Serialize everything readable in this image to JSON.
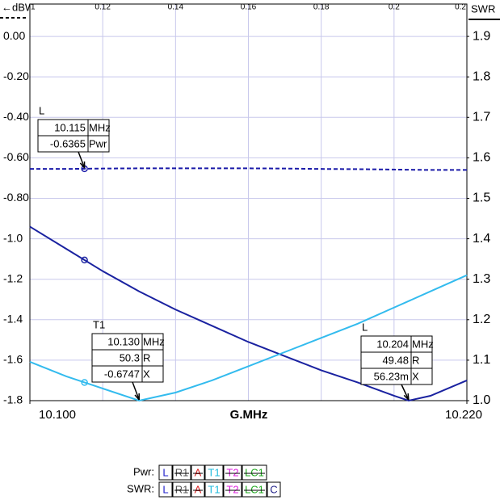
{
  "chart_data": {
    "type": "line",
    "ylabel": "←dBW",
    "y2label": "SWR",
    "xlabel": "G.MHz",
    "xlim": [
      10.1,
      10.22
    ],
    "xticks": [
      {
        "value": 10.1,
        "label": "10.100"
      },
      {
        "value": 10.22,
        "label": "10.220"
      }
    ],
    "x2lim": [
      0.1,
      0.22
    ],
    "x2ticks": [
      {
        "value": 0.1,
        "label": "1"
      },
      0.12,
      0.14,
      0.16,
      0.18,
      {
        "value": 0.2,
        "label": "0.2"
      },
      {
        "value": 0.22,
        "label": "0.2"
      }
    ],
    "ylim": [
      -1.8,
      0.16
    ],
    "yticks": [
      {
        "value": 0,
        "label": "0.00"
      },
      {
        "value": -0.2,
        "label": "-0.20"
      },
      {
        "value": -0.4,
        "label": "-0.40"
      },
      {
        "value": -0.6,
        "label": "-0.60"
      },
      {
        "value": -0.8,
        "label": "-0.80"
      },
      {
        "value": -1.0,
        "label": "-1.0"
      },
      -1.2,
      -1.4,
      -1.6,
      -1.8
    ],
    "y2lim": [
      1.0,
      1.98
    ],
    "y2ticks": [
      {
        "value": 1.0,
        "label": "1.0"
      },
      1.1,
      1.2,
      1.3,
      1.4,
      1.5,
      1.6,
      1.7,
      1.8,
      1.9
    ],
    "grid": true,
    "series": [
      {
        "color": "#1a1aa8",
        "dashed": true,
        "x": [
          10.1,
          10.11,
          10.12,
          10.13,
          10.14,
          10.15,
          10.16,
          10.17,
          10.18,
          10.19,
          10.2,
          10.21,
          10.22
        ],
        "values": [
          -0.655,
          -0.655,
          -0.653,
          -0.652,
          -0.652,
          -0.652,
          -0.652,
          -0.653,
          -0.655,
          -0.656,
          -0.658,
          -0.66,
          -0.66
        ]
      },
      {
        "color": "#1a22a0",
        "axis": "y2",
        "x": [
          10.1,
          10.11,
          10.12,
          10.13,
          10.14,
          10.15,
          10.16,
          10.17,
          10.18,
          10.19,
          10.2,
          10.204,
          10.21,
          10.22
        ],
        "values": [
          1.43,
          1.375,
          1.32,
          1.27,
          1.225,
          1.185,
          1.145,
          1.11,
          1.075,
          1.045,
          1.012,
          1.0,
          1.012,
          1.05
        ]
      },
      {
        "color": "#33bbee",
        "axis": "y2",
        "x": [
          10.1,
          10.11,
          10.12,
          10.13,
          10.14,
          10.15,
          10.16,
          10.17,
          10.18,
          10.19,
          10.2,
          10.21,
          10.22
        ],
        "values": [
          1.096,
          1.06,
          1.03,
          1.0,
          1.02,
          1.05,
          1.085,
          1.12,
          1.155,
          1.19,
          1.23,
          1.27,
          1.31
        ]
      }
    ],
    "markers": [
      {
        "name": "L",
        "freq": {
          "value": 10.115,
          "label": "10.115"
        },
        "freq_unit": "MHz",
        "readouts": [
          {
            "value": "-0.6365",
            "unit": "Pwr"
          }
        ]
      },
      {
        "name": "T1",
        "freq": {
          "value": 10.13,
          "label": "10.130"
        },
        "freq_unit": "MHz",
        "readouts": [
          {
            "value": "50.3",
            "unit": "R"
          },
          {
            "value": "-0.6747",
            "unit": "X"
          }
        ]
      },
      {
        "name": "L",
        "freq": {
          "value": 10.204,
          "label": "10.204"
        },
        "freq_unit": "MHz",
        "readouts": [
          {
            "value": "49.48",
            "unit": "R"
          },
          {
            "value": "56.23m",
            "unit": "X"
          }
        ]
      }
    ],
    "legend": {
      "rows": [
        {
          "label": "Pwr:",
          "items": [
            {
              "text": "L",
              "color": "#2222cc",
              "struck": false
            },
            {
              "text": "R1",
              "color": "#555555",
              "struck": true
            },
            {
              "text": "A",
              "color": "#dd2222",
              "struck": true
            },
            {
              "text": "T1",
              "color": "#22bbdd",
              "struck": false
            },
            {
              "text": "T2",
              "color": "#dd22dd",
              "struck": true
            },
            {
              "text": "LC1",
              "color": "#22aa22",
              "struck": true
            }
          ]
        },
        {
          "label": "SWR:",
          "items": [
            {
              "text": "L",
              "color": "#2222cc",
              "struck": false
            },
            {
              "text": "R1",
              "color": "#555555",
              "struck": true
            },
            {
              "text": "A",
              "color": "#dd2222",
              "struck": true
            },
            {
              "text": "T1",
              "color": "#22bbdd",
              "struck": false
            },
            {
              "text": "T2",
              "color": "#dd22dd",
              "struck": true
            },
            {
              "text": "LC1",
              "color": "#22aa22",
              "struck": true
            },
            {
              "text": "C",
              "color": "#222288",
              "struck": false
            }
          ]
        }
      ]
    }
  }
}
